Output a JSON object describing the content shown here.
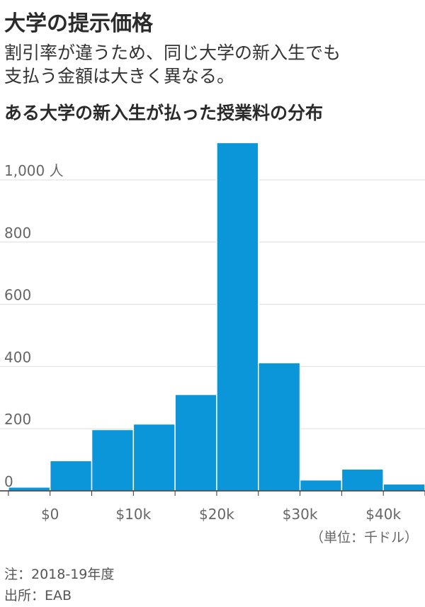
{
  "header": {
    "title": "大学の提示価格",
    "subtitle_line1": "割引率が違うため、同じ大学の新入生でも",
    "subtitle_line2": "支払う金額は大きく異なる。"
  },
  "chart_data": {
    "type": "bar",
    "title": "ある大学の新入生が払った授業料の分布",
    "xlabel": "",
    "ylabel": "",
    "unit_label": "（単位：千ドル）",
    "y_unit_suffix": " 人",
    "bins": [
      {
        "x0": -5,
        "x1": 0,
        "value": 12
      },
      {
        "x0": 0,
        "x1": 5,
        "value": 97
      },
      {
        "x0": 5,
        "x1": 10,
        "value": 197
      },
      {
        "x0": 10,
        "x1": 15,
        "value": 215
      },
      {
        "x0": 15,
        "x1": 20,
        "value": 310
      },
      {
        "x0": 20,
        "x1": 25,
        "value": 1120
      },
      {
        "x0": 25,
        "x1": 30,
        "value": 412
      },
      {
        "x0": 30,
        "x1": 35,
        "value": 35
      },
      {
        "x0": 35,
        "x1": 40,
        "value": 70
      },
      {
        "x0": 40,
        "x1": 45,
        "value": 22
      }
    ],
    "xlim": [
      -5.5,
      45
    ],
    "ylim": [
      0,
      1130
    ],
    "x_ticks": [
      {
        "value": 0,
        "label": "$0"
      },
      {
        "value": 10,
        "label": "$10k"
      },
      {
        "value": 20,
        "label": "$20k"
      },
      {
        "value": 30,
        "label": "$30k"
      },
      {
        "value": 40,
        "label": "$40k"
      }
    ],
    "y_ticks": [
      {
        "value": 0,
        "label": "0"
      },
      {
        "value": 200,
        "label": "200"
      },
      {
        "value": 400,
        "label": "400"
      },
      {
        "value": 600,
        "label": "600"
      },
      {
        "value": 800,
        "label": "800"
      },
      {
        "value": 1000,
        "label": "1,000"
      }
    ],
    "grid": true,
    "bar_color": "#0b96d9",
    "grid_color": "#dddddd",
    "axis_color": "#333333",
    "tick_label_color": "#666666"
  },
  "notes": {
    "note": "注：2018-19年度",
    "source": "出所：EAB"
  }
}
